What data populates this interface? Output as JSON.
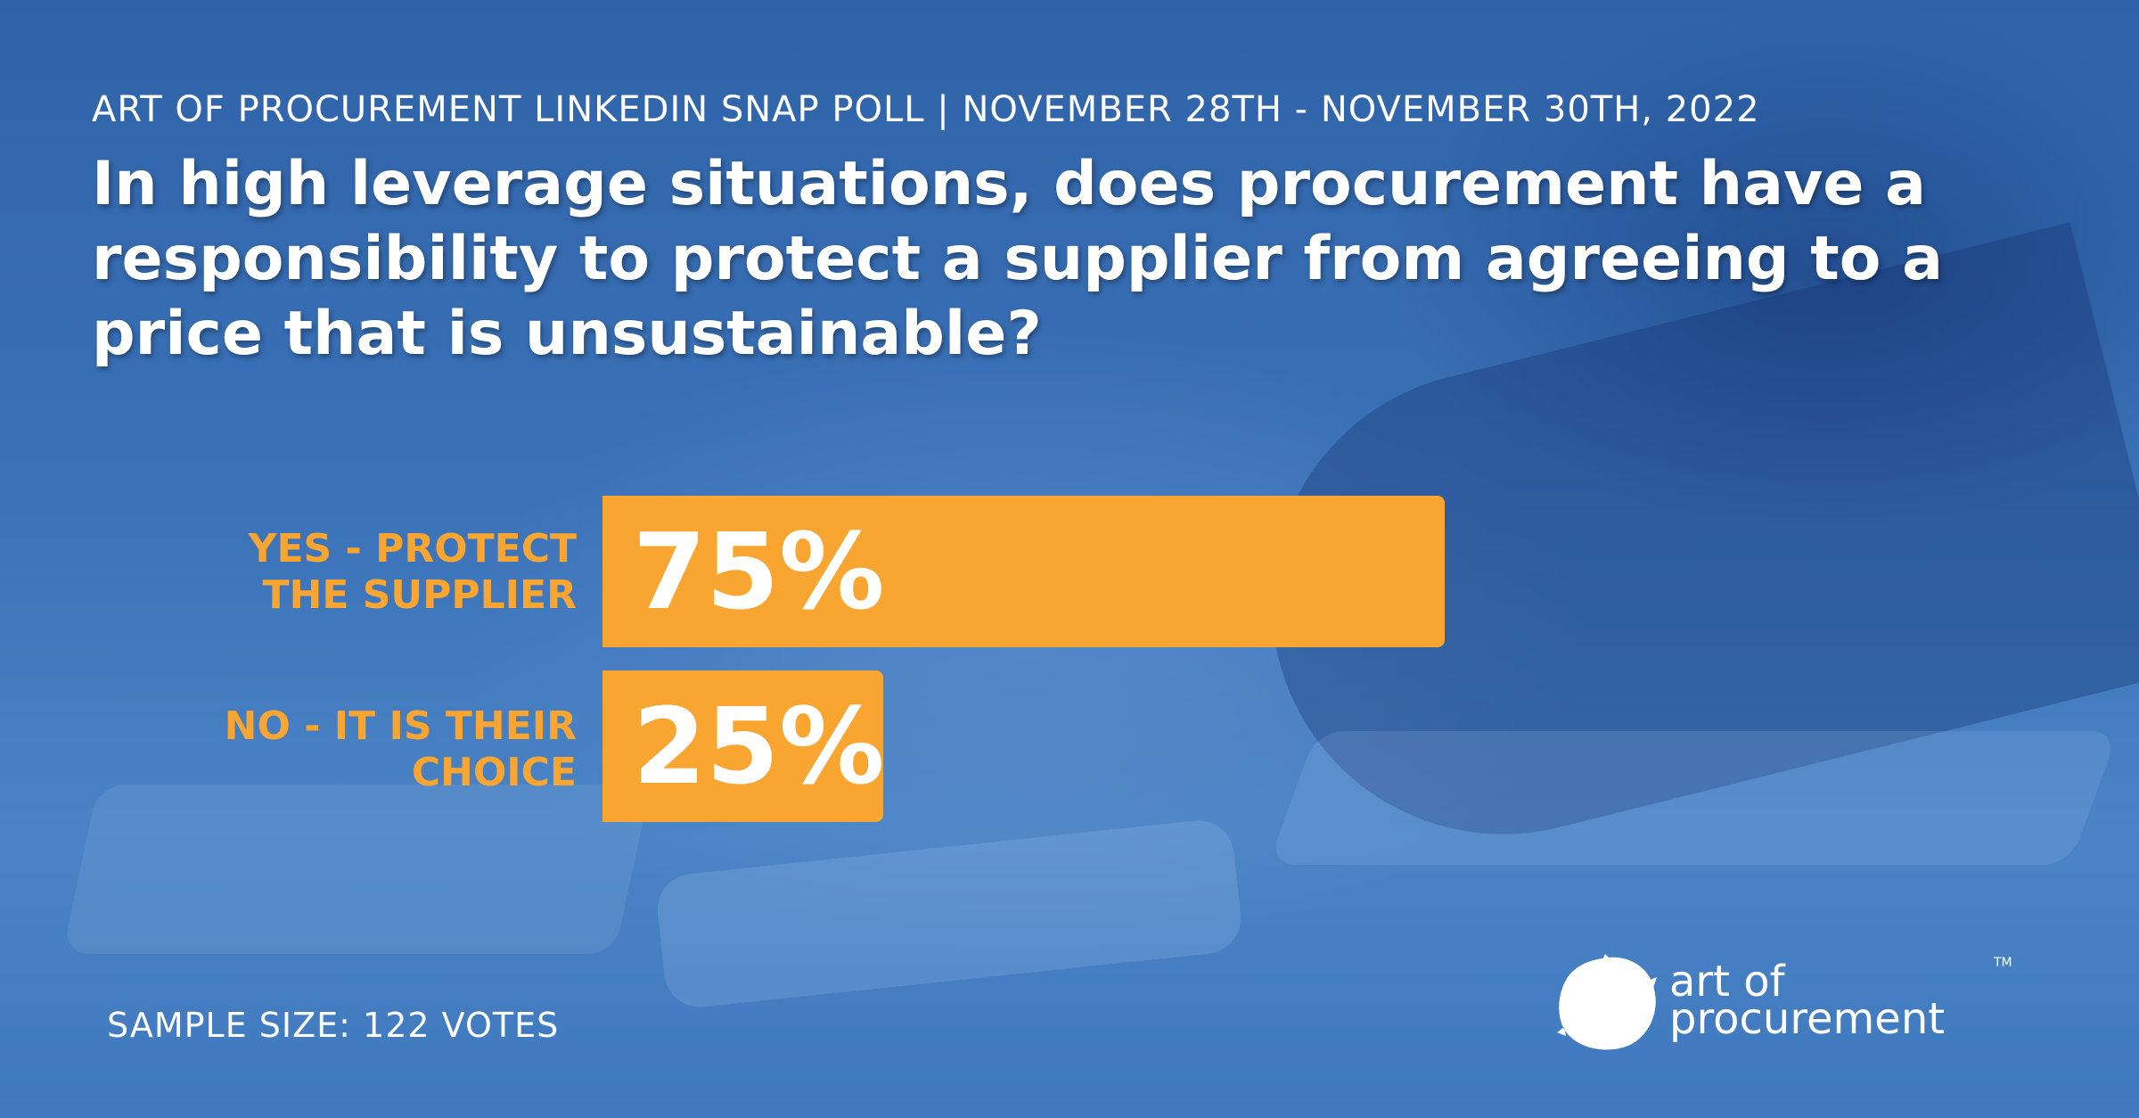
{
  "header": {
    "subtitle": "ART OF PROCUREMENT LINKEDIN SNAP POLL | NOVEMBER 28TH - NOVEMBER 30TH, 2022",
    "question_lines": [
      "In high leverage situations, does procurement have a",
      "responsibility to protect a supplier from agreeing to a",
      "price that is unsustainable?"
    ]
  },
  "chart_data": {
    "type": "bar",
    "orientation": "horizontal",
    "categories": [
      "YES - PROTECT THE SUPPLIER",
      "NO - IT IS THEIR CHOICE"
    ],
    "category_lines": [
      [
        "YES - PROTECT",
        "THE SUPPLIER"
      ],
      [
        "NO - IT IS THEIR",
        "CHOICE"
      ]
    ],
    "values": [
      75,
      25
    ],
    "data_labels": [
      "75%",
      "25%"
    ],
    "unit": "%",
    "xlim": [
      0,
      100
    ],
    "title": "",
    "xlabel": "",
    "ylabel": "",
    "grid": false,
    "legend": "none",
    "bar_color": "#f8a531",
    "label_color": "#f8a531",
    "value_label_color": "#ffffff"
  },
  "footer": {
    "sample_size": "SAMPLE SIZE: 122 VOTES"
  },
  "logo": {
    "icon": "brand-blob-icon",
    "lines": [
      "art of",
      "procurement"
    ],
    "trademark": "TM"
  },
  "colors": {
    "background": "#3b72b8",
    "accent": "#f8a531",
    "text": "#ffffff"
  }
}
